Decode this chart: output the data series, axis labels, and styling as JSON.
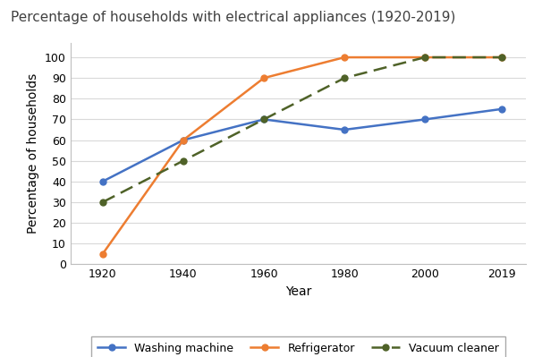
{
  "title": "Percentage of households with electrical appliances (1920-2019)",
  "xlabel": "Year",
  "ylabel": "Percentage of households",
  "years": [
    1920,
    1940,
    1960,
    1980,
    2000,
    2019
  ],
  "washing_machine": [
    40,
    60,
    70,
    65,
    70,
    75
  ],
  "refrigerator": [
    5,
    60,
    90,
    100,
    100,
    100
  ],
  "vacuum_cleaner": [
    30,
    50,
    70,
    90,
    100,
    100
  ],
  "washing_color": "#4472C4",
  "refrigerator_color": "#ED7D31",
  "vacuum_color": "#4F6228",
  "fig_bg_color": "#FFFFFF",
  "plot_bg_color": "#FFFFFF",
  "grid_color": "#D9D9D9",
  "spine_color": "#BFBFBF",
  "ylim": [
    0,
    107
  ],
  "yticks": [
    0,
    10,
    20,
    30,
    40,
    50,
    60,
    70,
    80,
    90,
    100
  ],
  "title_fontsize": 11,
  "axis_label_fontsize": 10,
  "tick_fontsize": 9,
  "legend_fontsize": 9,
  "linewidth": 1.8,
  "markersize": 5
}
